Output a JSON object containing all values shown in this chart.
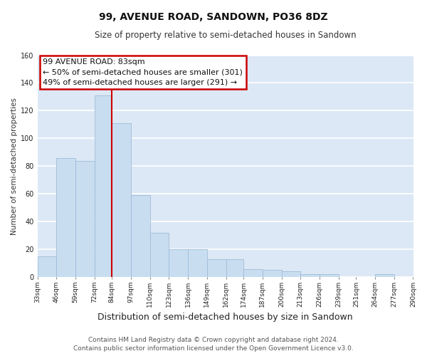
{
  "title": "99, AVENUE ROAD, SANDOWN, PO36 8DZ",
  "subtitle": "Size of property relative to semi-detached houses in Sandown",
  "xlabel": "Distribution of semi-detached houses by size in Sandown",
  "ylabel": "Number of semi-detached properties",
  "bins": [
    33,
    46,
    59,
    72,
    84,
    97,
    110,
    123,
    136,
    149,
    162,
    174,
    187,
    200,
    213,
    226,
    239,
    251,
    264,
    277,
    290
  ],
  "values": [
    15,
    86,
    84,
    131,
    111,
    59,
    32,
    20,
    20,
    13,
    13,
    6,
    5,
    4,
    2,
    2,
    0,
    0,
    2,
    0
  ],
  "bar_color": "#c8ddf0",
  "bar_edge_color": "#a0bcd8",
  "property_line_x": 84,
  "property_line_color": "#cc0000",
  "annotation_title": "99 AVENUE ROAD: 83sqm",
  "annotation_line1": "← 50% of semi-detached houses are smaller (301)",
  "annotation_line2": "49% of semi-detached houses are larger (291) →",
  "annotation_box_facecolor": "#ffffff",
  "annotation_box_edgecolor": "#cc0000",
  "ylim": [
    0,
    160
  ],
  "yticks": [
    0,
    20,
    40,
    60,
    80,
    100,
    120,
    140,
    160
  ],
  "tick_labels": [
    "33sqm",
    "46sqm",
    "59sqm",
    "72sqm",
    "84sqm",
    "97sqm",
    "110sqm",
    "123sqm",
    "136sqm",
    "149sqm",
    "162sqm",
    "174sqm",
    "187sqm",
    "200sqm",
    "213sqm",
    "226sqm",
    "239sqm",
    "251sqm",
    "264sqm",
    "277sqm",
    "290sqm"
  ],
  "footer_line1": "Contains HM Land Registry data © Crown copyright and database right 2024.",
  "footer_line2": "Contains public sector information licensed under the Open Government Licence v3.0.",
  "fig_bg_color": "#ffffff",
  "plot_bg_color": "#dce8f5",
  "grid_color": "#ffffff",
  "title_fontsize": 10,
  "subtitle_fontsize": 8.5,
  "xlabel_fontsize": 9,
  "ylabel_fontsize": 7.5,
  "tick_fontsize": 6.5,
  "annotation_fontsize": 8,
  "footer_fontsize": 6.5
}
